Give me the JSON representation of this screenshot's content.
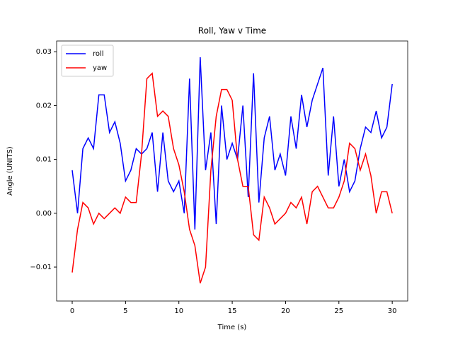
{
  "chart_data": {
    "type": "line",
    "title": "Roll, Yaw v Time",
    "x_label": "Time (s)",
    "y_label": "Angle (UNITS)",
    "x": [
      0,
      0.5,
      1,
      1.5,
      2,
      2.5,
      3,
      3.5,
      4,
      4.5,
      5,
      5.5,
      6,
      6.5,
      7,
      7.5,
      8,
      8.5,
      9,
      9.5,
      10,
      10.5,
      11,
      11.5,
      12,
      12.5,
      13,
      13.5,
      14,
      14.5,
      15,
      15.5,
      16,
      16.5,
      17,
      17.5,
      18,
      18.5,
      19,
      19.5,
      20,
      20.5,
      21,
      21.5,
      22,
      22.5,
      23,
      23.5,
      24,
      24.5,
      25,
      25.5,
      26,
      26.5,
      27,
      27.5,
      28,
      28.5,
      29,
      29.5,
      30
    ],
    "series": [
      {
        "name": "roll",
        "color": "#0000ff",
        "values": [
          0.008,
          0.0,
          0.012,
          0.014,
          0.012,
          0.022,
          0.022,
          0.015,
          0.017,
          0.013,
          0.006,
          0.008,
          0.012,
          0.011,
          0.012,
          0.015,
          0.004,
          0.015,
          0.006,
          0.004,
          0.006,
          0.0,
          0.025,
          -0.003,
          0.029,
          0.008,
          0.015,
          -0.002,
          0.02,
          0.01,
          0.013,
          0.01,
          0.02,
          0.003,
          0.026,
          0.002,
          0.014,
          0.018,
          0.008,
          0.011,
          0.007,
          0.018,
          0.012,
          0.022,
          0.016,
          0.021,
          0.024,
          0.027,
          0.007,
          0.018,
          0.005,
          0.01,
          0.004,
          0.006,
          0.012,
          0.016,
          0.015,
          0.019,
          0.014,
          0.016,
          0.024
        ]
      },
      {
        "name": "yaw",
        "color": "#ff0000",
        "values": [
          -0.011,
          -0.003,
          0.002,
          0.001,
          -0.002,
          0.0,
          -0.001,
          0.0,
          0.001,
          0.0,
          0.003,
          0.002,
          0.002,
          0.011,
          0.025,
          0.026,
          0.018,
          0.019,
          0.018,
          0.012,
          0.009,
          0.004,
          -0.003,
          -0.006,
          -0.013,
          -0.01,
          0.008,
          0.018,
          0.023,
          0.023,
          0.021,
          0.01,
          0.005,
          0.005,
          -0.004,
          -0.005,
          0.003,
          0.001,
          -0.002,
          -0.001,
          0.0,
          0.002,
          0.001,
          0.003,
          -0.002,
          0.004,
          0.005,
          0.003,
          0.001,
          0.001,
          0.003,
          0.006,
          0.013,
          0.012,
          0.008,
          0.011,
          0.007,
          0.0,
          0.004,
          0.004,
          0.0
        ]
      }
    ],
    "xlim": [
      -1.46,
      31.45
    ],
    "ylim": [
      -0.0163,
      0.032
    ],
    "xticks": [
      0,
      5,
      10,
      15,
      20,
      25,
      30
    ],
    "yticks": [
      {
        "value": -0.01,
        "label": "−0.01"
      },
      {
        "value": 0,
        "label": "0.00"
      },
      0.01,
      0.02,
      0.03
    ],
    "legend": "upper left"
  }
}
